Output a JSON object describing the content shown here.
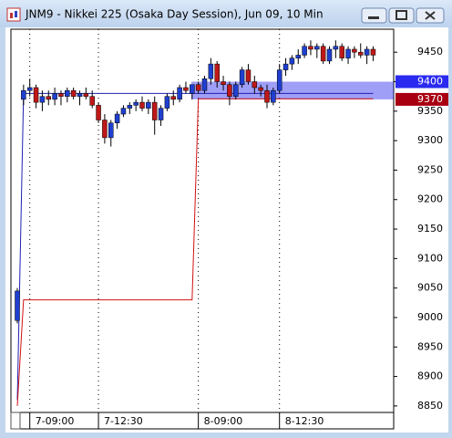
{
  "window": {
    "title": "JNM9 - Nikkei 225 (Osaka Day Session), Jun 09, 10 Min"
  },
  "chart_data": {
    "type": "candlestick",
    "categories": [
      null,
      null,
      "7-09:00",
      null,
      null,
      null,
      null,
      null,
      null,
      null,
      null,
      null,
      null,
      "7-12:30",
      null,
      null,
      null,
      null,
      null,
      null,
      null,
      null,
      null,
      null,
      null,
      null,
      null,
      null,
      null,
      "8-09:00",
      null,
      null,
      null,
      null,
      null,
      null,
      null,
      null,
      null,
      null,
      null,
      null,
      "8-12:30",
      null,
      null,
      null,
      null,
      null,
      null,
      null,
      null,
      null,
      null,
      null,
      null,
      null,
      null,
      null
    ],
    "open": [
      8995,
      9370,
      9385,
      9390,
      9365,
      9375,
      9370,
      9380,
      9375,
      9385,
      9375,
      9380,
      9375,
      9360,
      9335,
      9305,
      9330,
      9345,
      9355,
      9360,
      9365,
      9355,
      9365,
      9335,
      9355,
      9375,
      9370,
      9390,
      9380,
      9395,
      9385,
      9405,
      9430,
      9400,
      9395,
      9375,
      9395,
      9420,
      9400,
      9390,
      9385,
      9365,
      9385,
      9420,
      9430,
      9440,
      9445,
      9460,
      9455,
      9460,
      9435,
      9455,
      9460,
      9440,
      9455,
      9450,
      9445,
      9455
    ],
    "high": [
      9050,
      9395,
      9405,
      9395,
      9385,
      9385,
      9390,
      9385,
      9390,
      9390,
      9385,
      9390,
      9385,
      9365,
      9345,
      9335,
      9350,
      9360,
      9365,
      9370,
      9375,
      9370,
      9375,
      9360,
      9380,
      9385,
      9395,
      9400,
      9395,
      9400,
      9410,
      9440,
      9435,
      9410,
      9400,
      9400,
      9425,
      9430,
      9410,
      9395,
      9395,
      9390,
      9430,
      9440,
      9445,
      9455,
      9465,
      9470,
      9465,
      9465,
      9460,
      9470,
      9465,
      9460,
      9460,
      9465,
      9460,
      9460
    ],
    "low": [
      8990,
      9360,
      9375,
      9355,
      9350,
      9360,
      9360,
      9360,
      9365,
      9370,
      9360,
      9370,
      9355,
      9330,
      9295,
      9290,
      9320,
      9340,
      9345,
      9350,
      9350,
      9345,
      9310,
      9325,
      9350,
      9360,
      9365,
      9380,
      9370,
      9380,
      9380,
      9395,
      9390,
      9385,
      9360,
      9370,
      9390,
      9395,
      9380,
      9375,
      9355,
      9360,
      9380,
      9410,
      9420,
      9430,
      9440,
      9445,
      9440,
      9430,
      9430,
      9440,
      9435,
      9430,
      9440,
      9440,
      9430,
      9435
    ],
    "close": [
      9045,
      9385,
      9390,
      9365,
      9375,
      9370,
      9380,
      9375,
      9385,
      9375,
      9380,
      9375,
      9360,
      9335,
      9305,
      9330,
      9345,
      9355,
      9360,
      9365,
      9355,
      9365,
      9335,
      9355,
      9375,
      9370,
      9390,
      9385,
      9395,
      9385,
      9405,
      9430,
      9400,
      9395,
      9375,
      9395,
      9420,
      9400,
      9390,
      9385,
      9365,
      9385,
      9420,
      9430,
      9440,
      9445,
      9460,
      9455,
      9460,
      9435,
      9455,
      9460,
      9440,
      9455,
      9450,
      9445,
      9455,
      9445
    ],
    "up_color": "#1f3fd0",
    "down_color": "#c01818",
    "lines": [
      {
        "color": "#2020b0",
        "values": [
          8860,
          9380,
          9380,
          9380,
          9380,
          9380,
          9380,
          9380,
          9380,
          9380,
          9380,
          9380,
          9380,
          9380,
          9380,
          9380,
          9380,
          9380,
          9380,
          9380,
          9380,
          9380,
          9380,
          9380,
          9380,
          9380,
          9380,
          9380,
          9380,
          9380,
          9380,
          9380,
          9380,
          9380,
          9380,
          9380,
          9380,
          9380,
          9380,
          9380,
          9380,
          9380,
          9380,
          9380,
          9380,
          9380,
          9380,
          9380,
          9380,
          9380,
          9380,
          9380,
          9380,
          9380,
          9380,
          9380,
          9380,
          9380
        ]
      },
      {
        "color": "#d01010",
        "values": [
          8850,
          9030,
          9030,
          9030,
          9030,
          9030,
          9030,
          9030,
          9030,
          9030,
          9030,
          9030,
          9030,
          9030,
          9030,
          9030,
          9030,
          9030,
          9030,
          9030,
          9030,
          9030,
          9030,
          9030,
          9030,
          9030,
          9030,
          9030,
          9030,
          9371,
          9371,
          9371,
          9371,
          9371,
          9371,
          9371,
          9371,
          9371,
          9371,
          9371,
          9371,
          9371,
          9371,
          9371,
          9371,
          9371,
          9371,
          9371,
          9371,
          9371,
          9371,
          9371,
          9371,
          9371,
          9371,
          9371,
          9371,
          9371
        ]
      }
    ],
    "price_markers": [
      {
        "value": 9400,
        "color": "#2a2af0"
      },
      {
        "value": 9370,
        "color": "#a80010"
      }
    ],
    "ylim": [
      8839,
      9489
    ],
    "yticks": [
      8850,
      8900,
      8950,
      9000,
      9050,
      9100,
      9150,
      9200,
      9250,
      9300,
      9350,
      9400,
      9450
    ],
    "grid": true
  }
}
